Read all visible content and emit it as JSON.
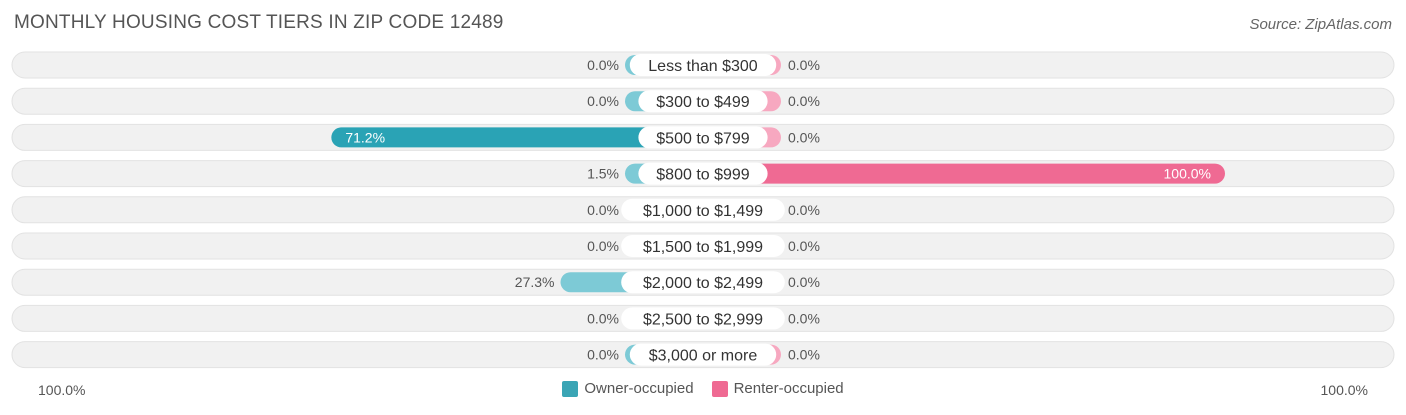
{
  "title": "MONTHLY HOUSING COST TIERS IN ZIP CODE 12489",
  "source": "Source: ZipAtlas.com",
  "axis": {
    "left_label": "100.0%",
    "right_label": "100.0%"
  },
  "legend": [
    {
      "label": "Owner-occupied",
      "color": "#3aa5b5"
    },
    {
      "label": "Renter-occupied",
      "color": "#ef6a93"
    }
  ],
  "chart_data": {
    "type": "bar",
    "orientation": "diverging-horizontal",
    "categories": [
      "Less than $300",
      "$300 to $499",
      "$500 to $799",
      "$800 to $999",
      "$1,000 to $1,499",
      "$1,500 to $1,999",
      "$2,000 to $2,499",
      "$2,500 to $2,999",
      "$3,000 or more"
    ],
    "series": [
      {
        "name": "Owner-occupied",
        "values": [
          0.0,
          0.0,
          71.2,
          1.5,
          0.0,
          0.0,
          27.3,
          0.0,
          0.0
        ],
        "labels": [
          "0.0%",
          "0.0%",
          "71.2%",
          "1.5%",
          "0.0%",
          "0.0%",
          "27.3%",
          "0.0%",
          "0.0%"
        ]
      },
      {
        "name": "Renter-occupied",
        "values": [
          0.0,
          0.0,
          0.0,
          100.0,
          0.0,
          0.0,
          0.0,
          0.0,
          0.0
        ],
        "labels": [
          "0.0%",
          "0.0%",
          "0.0%",
          "100.0%",
          "0.0%",
          "0.0%",
          "0.0%",
          "0.0%",
          "0.0%"
        ]
      }
    ],
    "xlim": [
      -100,
      100
    ],
    "colors": {
      "owner_light": "#7dcad6",
      "owner_dark": "#2aa3b5",
      "renter_light": "#f7a8c0",
      "renter_dark": "#ef6a93"
    }
  }
}
